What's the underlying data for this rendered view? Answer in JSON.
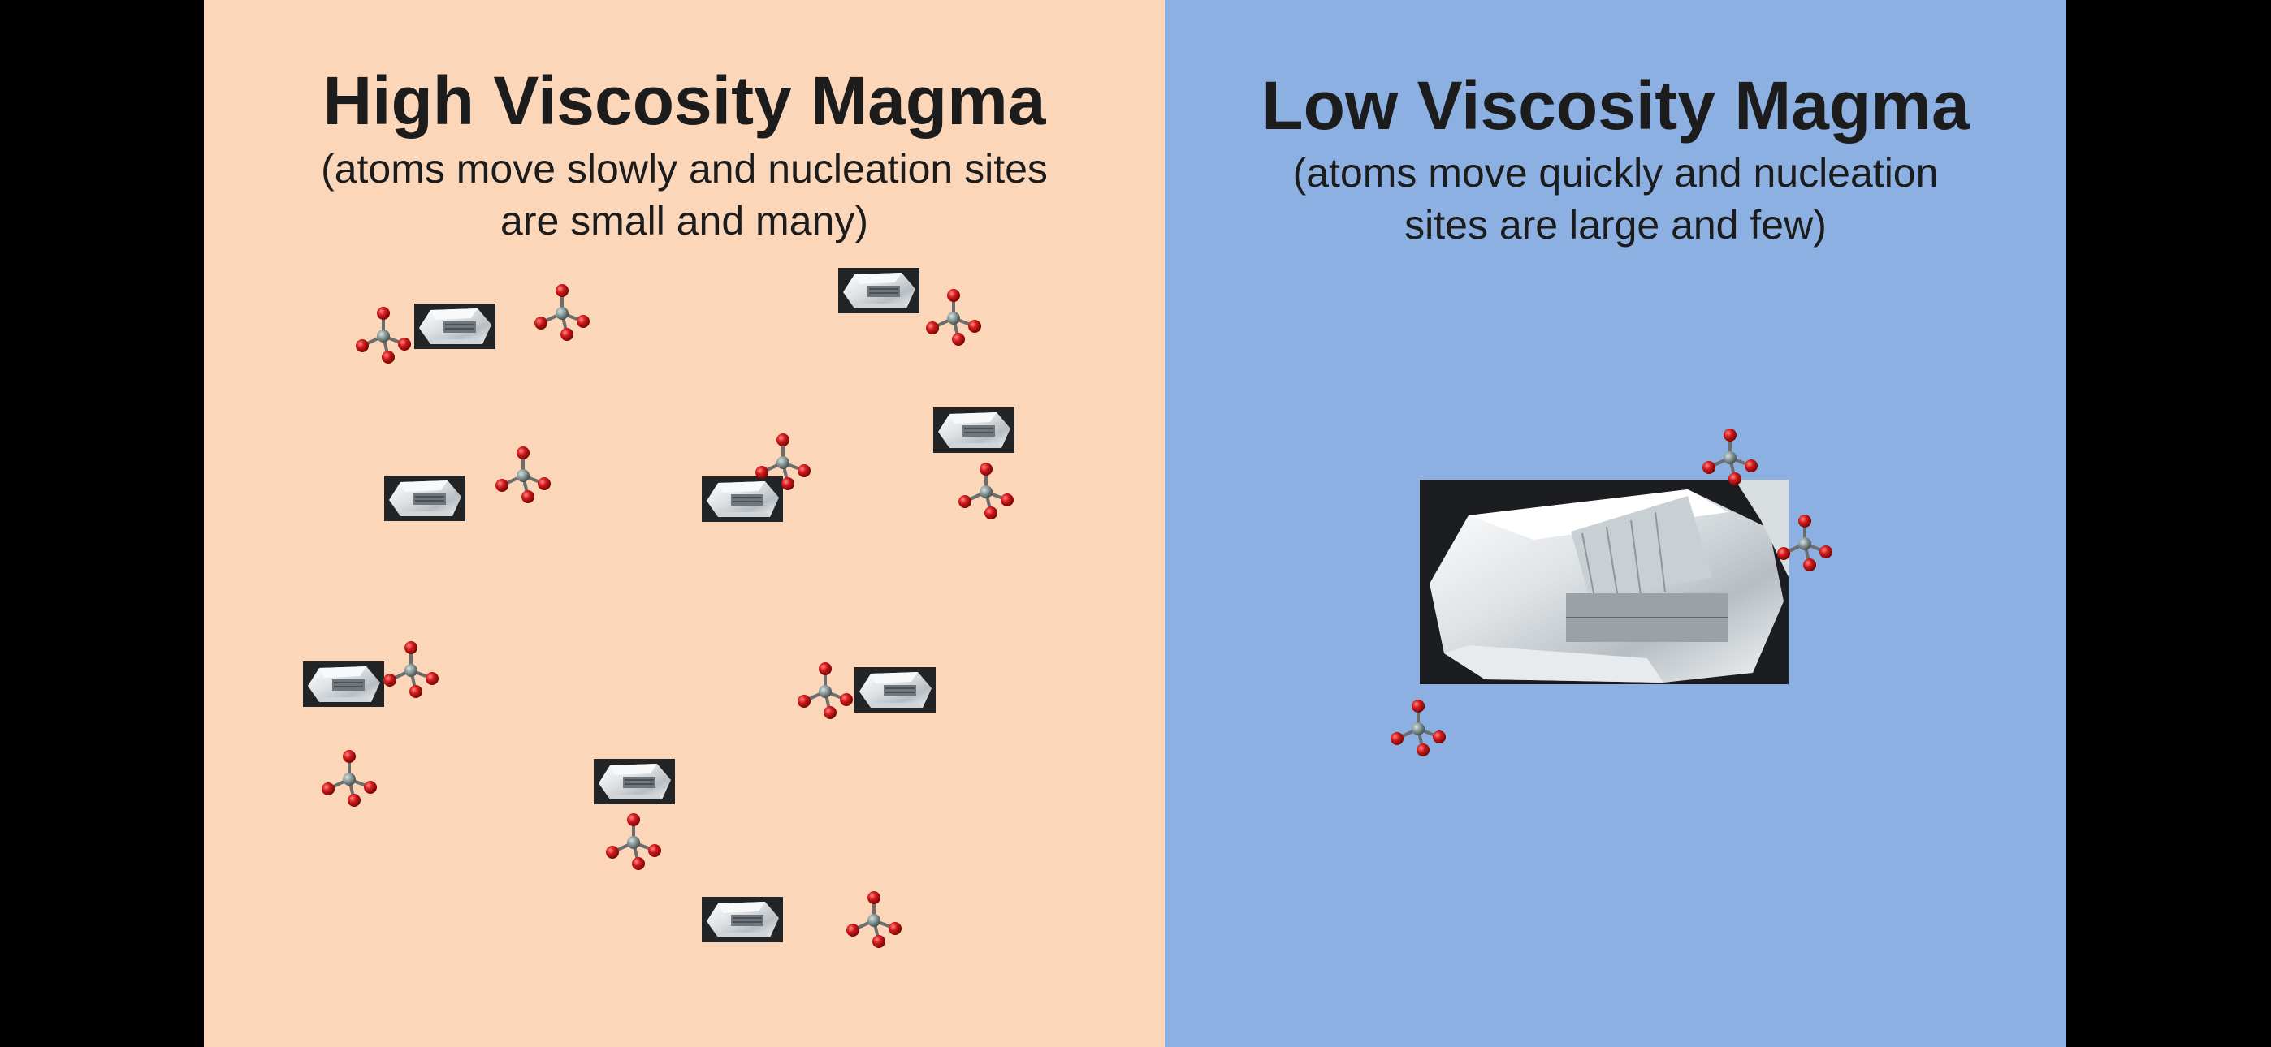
{
  "left_panel": {
    "title": "High Viscosity Magma",
    "subtitle_line1": "(atoms move slowly and nucleation sites",
    "subtitle_line2": "are small and many)"
  },
  "right_panel": {
    "title": "Low Viscosity Magma",
    "subtitle_line1": "(atoms move quickly and nucleation",
    "subtitle_line2": "sites are large and few)"
  },
  "icons": {
    "crystal": "quartz-crystal-icon",
    "molecule": "silica-tetrahedron-icon"
  },
  "colors": {
    "left_background": "#fcd6b9",
    "right_background": "#8db0e2",
    "frame": "#000000",
    "oxygen": "#d41a1a",
    "silicon": "#8a9b9b"
  }
}
